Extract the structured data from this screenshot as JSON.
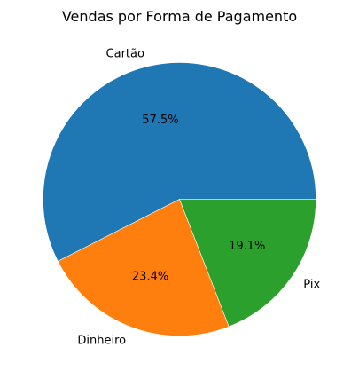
{
  "chart_data": {
    "type": "pie",
    "title": "Vendas por Forma de Pagamento",
    "slices": [
      {
        "label": "Cartão",
        "value": 57.5,
        "pct_label": "57.5%",
        "color": "#1f77b4"
      },
      {
        "label": "Dinheiro",
        "value": 23.4,
        "pct_label": "23.4%",
        "color": "#ff7f0e"
      },
      {
        "label": "Pix",
        "value": 19.1,
        "pct_label": "19.1%",
        "color": "#2ca02c"
      }
    ],
    "start_angle_deg": 0,
    "direction": "counterclockwise"
  }
}
